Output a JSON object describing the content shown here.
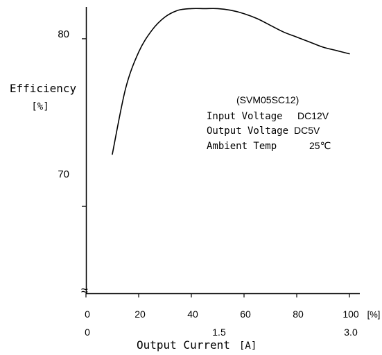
{
  "chart_data": {
    "type": "line",
    "ylabel": "Efficiency",
    "yunit": "[%]",
    "xlabel": "Output Current",
    "xunit": "[A]",
    "x_percent_unit": "[%]",
    "yticks": [
      "80",
      "70"
    ],
    "yticks_values": [
      80,
      70
    ],
    "xticks_percent": [
      "0",
      "20",
      "40",
      "60",
      "80",
      "100"
    ],
    "xticks_percent_values": [
      0,
      20,
      40,
      60,
      80,
      100
    ],
    "xticks_current": [
      "0",
      "1.5",
      "3.0"
    ],
    "xticks_current_values": [
      0,
      50,
      100
    ],
    "axis_break": "≈",
    "ylim": [
      64.8,
      81.9
    ],
    "xlim": [
      0,
      100
    ],
    "annotation": {
      "model": "(SVM05SC12)",
      "lines": [
        {
          "label": "Input Voltage",
          "value": "DC12V"
        },
        {
          "label": "Output Voltage",
          "value": "DC5V"
        },
        {
          "label": "Ambient Temp",
          "value": "25℃"
        }
      ]
    },
    "series": [
      {
        "x": [
          10,
          15,
          20,
          25,
          30,
          35,
          40,
          45,
          50,
          55,
          60,
          65,
          70,
          75,
          80,
          85,
          90,
          95,
          100
        ],
        "values": [
          73.1,
          77.0,
          79.2,
          80.5,
          81.3,
          81.7,
          81.8,
          81.8,
          81.8,
          81.7,
          81.5,
          81.2,
          80.8,
          80.4,
          80.1,
          79.8,
          79.5,
          79.3,
          79.1
        ],
        "color": "#000000"
      }
    ]
  }
}
